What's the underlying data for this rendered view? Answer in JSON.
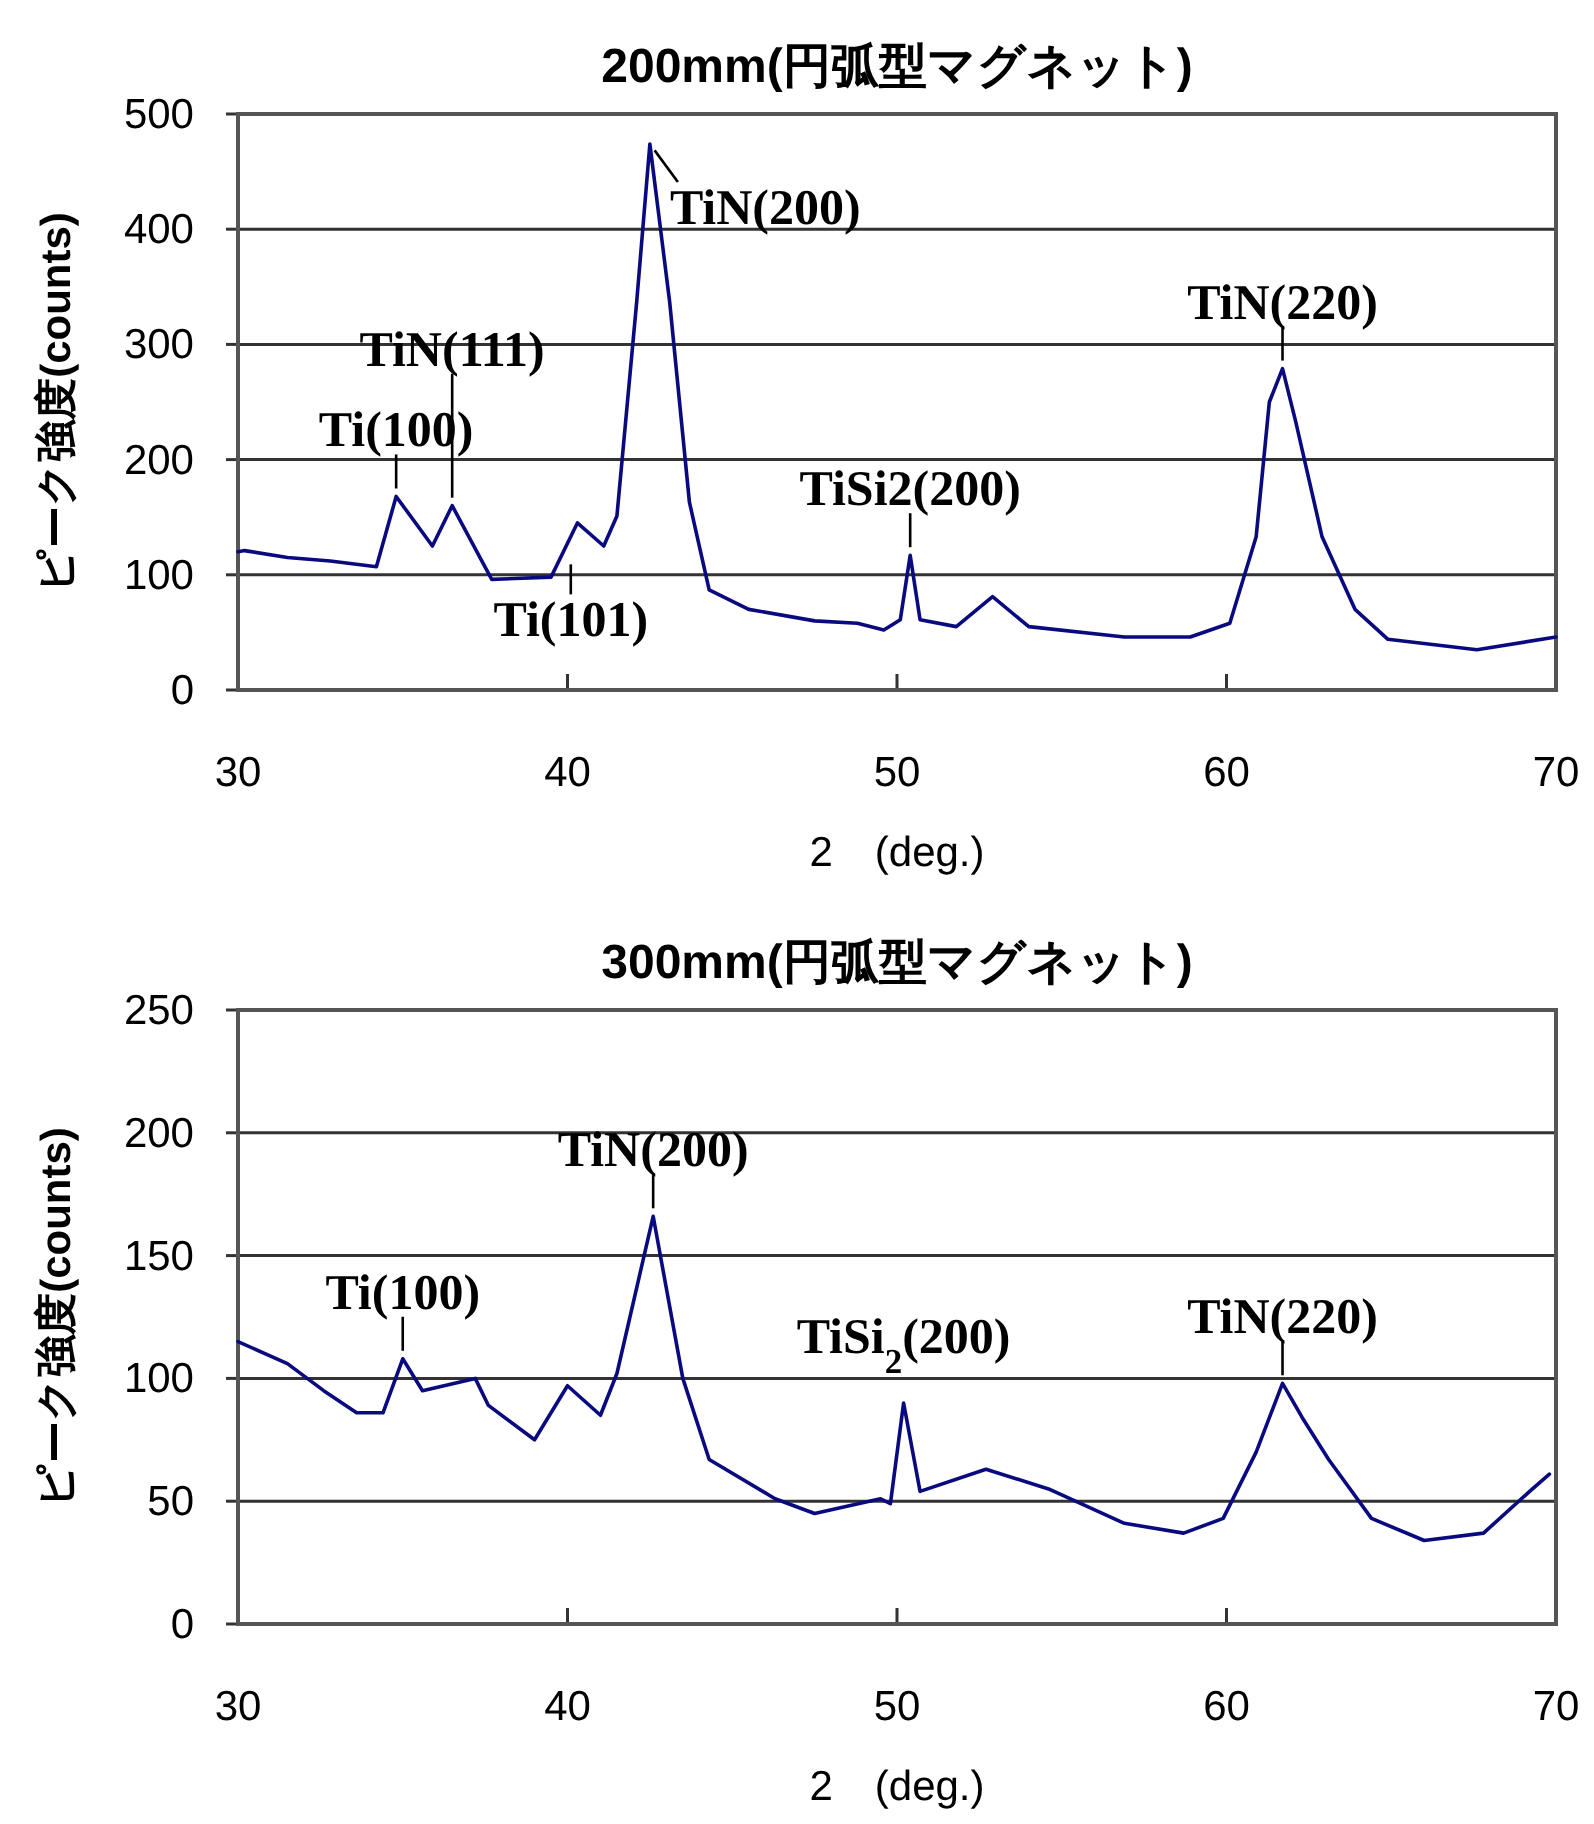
{
  "chart_data": [
    {
      "type": "line",
      "title": "200mm(円弧型マグネット)",
      "xlabel": "2　(deg.)",
      "ylabel": "ピーク強度(counts)",
      "x": [
        30.0,
        30.2,
        31.5,
        32.8,
        34.2,
        34.8,
        35.9,
        36.5,
        37.7,
        39.5,
        40.3,
        41.1,
        41.5,
        42.1,
        42.5,
        43.1,
        43.7,
        44.3,
        45.5,
        47.5,
        48.8,
        49.6,
        50.1,
        50.4,
        50.7,
        51.8,
        52.9,
        54.0,
        56.9,
        58.9,
        60.1,
        60.9,
        61.3,
        61.7,
        62.1,
        62.9,
        63.9,
        64.9,
        67.6,
        70.0
      ],
      "series": [
        {
          "color": "#0a0a80",
          "values": [
            120,
            121,
            115,
            112,
            107,
            168,
            125,
            160,
            96,
            98,
            145,
            125,
            151,
            337,
            474,
            337,
            163,
            87,
            70,
            60,
            58,
            52,
            61,
            117,
            61,
            55,
            81,
            55,
            46,
            46,
            58,
            133,
            250,
            279,
            233,
            133,
            70,
            44,
            35,
            46
          ]
        }
      ],
      "xlim": [
        30,
        70
      ],
      "xticks": [
        30,
        40,
        50,
        60,
        70
      ],
      "ylim": [
        0,
        500
      ],
      "yticks": [
        0,
        100,
        200,
        300,
        400,
        500
      ],
      "grid": "y",
      "marker": "none",
      "line_style": "solid",
      "annotations": [
        {
          "text": "Ti(100)",
          "x": 34.8,
          "y": 168
        },
        {
          "text": "TiN(111)",
          "x": 36.5,
          "y": 160
        },
        {
          "text": "Ti(101)",
          "x": 40.1,
          "y": 116
        },
        {
          "text": "TiN(200)",
          "x": 42.5,
          "y": 474
        },
        {
          "text": "TiSi2(200)",
          "x": 50.4,
          "y": 117
        },
        {
          "text": "TiN(220)",
          "x": 61.7,
          "y": 279
        }
      ]
    },
    {
      "type": "line",
      "title": "300mm(円弧型マグネット)",
      "xlabel": "2　(deg.)",
      "ylabel": "ピーク強度(counts)",
      "x": [
        30.0,
        31.5,
        32.6,
        33.6,
        34.4,
        35.0,
        35.6,
        37.2,
        37.6,
        39.0,
        40.0,
        41.0,
        41.5,
        42.6,
        43.5,
        44.3,
        46.3,
        47.5,
        49.5,
        49.8,
        50.2,
        50.7,
        52.7,
        54.6,
        56.9,
        58.7,
        59.9,
        60.9,
        61.7,
        62.3,
        63.1,
        64.4,
        66.0,
        67.8,
        69.2,
        69.8
      ],
      "series": [
        {
          "color": "#0a0a80",
          "values": [
            115,
            106,
            95,
            86,
            86,
            108,
            95,
            100,
            89,
            75,
            97,
            85,
            102,
            166,
            100,
            67,
            51,
            45,
            51,
            49,
            90,
            54,
            63,
            55,
            41,
            37,
            43,
            70,
            98,
            84,
            67,
            43,
            34,
            37,
            54,
            61
          ]
        }
      ],
      "xlim": [
        30,
        70
      ],
      "xticks": [
        30,
        40,
        50,
        60,
        70
      ],
      "ylim": [
        0,
        250
      ],
      "yticks": [
        0,
        50,
        100,
        150,
        200,
        250
      ],
      "grid": "y",
      "marker": "none",
      "line_style": "solid",
      "annotations": [
        {
          "text": "Ti(100)",
          "x": 35.0,
          "y": 108
        },
        {
          "text": "TiN(200)",
          "x": 42.6,
          "y": 166
        },
        {
          "text": "TiSi$_{2}$(200)",
          "x": 50.2,
          "y": 90
        },
        {
          "text": "TiN(220)",
          "x": 61.7,
          "y": 98
        }
      ]
    }
  ]
}
